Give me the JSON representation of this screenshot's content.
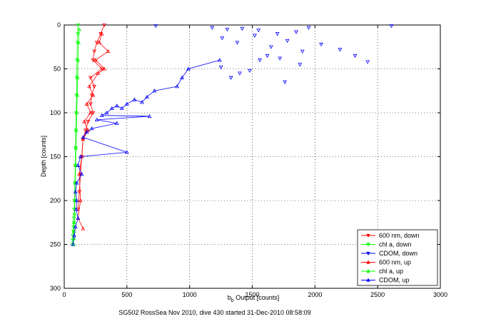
{
  "chart_data": {
    "type": "scatter",
    "xlabel_main": "b",
    "xlabel_sub": "b",
    "xlabel_rest": " Output [counts]",
    "ylabel": "Depth [counts]",
    "xlim": [
      0,
      3000
    ],
    "ylim": [
      0,
      300
    ],
    "y_reversed": true,
    "grid": true,
    "x_ticks": [
      0,
      500,
      1000,
      1500,
      2000,
      2500,
      3000
    ],
    "y_ticks": [
      0,
      50,
      100,
      150,
      200,
      250,
      300
    ],
    "legend_position": "bottom-right",
    "footer": "SG502 RossSea Nov 2010, dive 430 started 31-Dec-2010 08:58:09",
    "colors": {
      "red": "#ff0000",
      "green": "#00ff00",
      "blue": "#0000ff"
    },
    "series": [
      {
        "name": "600 nm, down",
        "color": "#ff0000",
        "marker": "triangle-down",
        "line": true,
        "x": [
          320,
          290,
          260,
          240,
          230,
          300,
          210,
          240,
          220,
          210,
          230,
          190,
          170,
          150,
          140,
          130,
          120,
          110
        ],
        "y": [
          0,
          10,
          20,
          30,
          40,
          50,
          60,
          70,
          80,
          90,
          100,
          110,
          120,
          130,
          150,
          170,
          190,
          210
        ]
      },
      {
        "name": "chl a, down",
        "color": "#00ff00",
        "marker": "triangle-down",
        "line": true,
        "x": [
          110,
          108,
          105,
          102,
          100,
          98,
          95,
          92,
          90,
          88,
          85,
          82,
          80,
          78,
          76,
          74,
          72,
          70,
          68,
          66
        ],
        "y": [
          0,
          10,
          20,
          40,
          60,
          80,
          100,
          120,
          140,
          160,
          180,
          200,
          210,
          220,
          225,
          230,
          235,
          240,
          245,
          250
        ]
      },
      {
        "name": "CDOM, down",
        "color": "#0000ff",
        "marker": "triangle-down",
        "line": false,
        "x": [
          730,
          2610,
          1180,
          1300,
          1420,
          1550,
          1700,
          1850,
          1950,
          1260,
          1380,
          1520,
          1650,
          1780,
          1900,
          2050,
          2200,
          2320,
          2420,
          1250,
          1400,
          1560,
          1720,
          1880,
          1330,
          1480,
          1620,
          1760
        ],
        "y": [
          1,
          1,
          3,
          5,
          4,
          6,
          10,
          8,
          3,
          15,
          20,
          12,
          25,
          18,
          30,
          22,
          28,
          35,
          42,
          48,
          55,
          40,
          38,
          45,
          60,
          52,
          35,
          65
        ]
      },
      {
        "name": "600 nm, up",
        "color": "#ff0000",
        "marker": "triangle-up",
        "line": true,
        "x": [
          300,
          280,
          350,
          250,
          320,
          270,
          200,
          230,
          180,
          210,
          160,
          190,
          150,
          140,
          120,
          130,
          110,
          150
        ],
        "y": [
          10,
          20,
          30,
          40,
          50,
          55,
          70,
          80,
          90,
          100,
          110,
          120,
          130,
          150,
          170,
          200,
          220,
          232
        ]
      },
      {
        "name": "chl a, up",
        "color": "#00ff00",
        "marker": "triangle-up",
        "line": true,
        "x": [
          120,
          115,
          110,
          107,
          104,
          100,
          97,
          94,
          91,
          88,
          85,
          82,
          80,
          78,
          76,
          74
        ],
        "y": [
          5,
          20,
          40,
          60,
          80,
          100,
          120,
          140,
          160,
          180,
          200,
          215,
          225,
          235,
          243,
          250
        ]
      },
      {
        "name": "CDOM, up",
        "color": "#0000ff",
        "marker": "triangle-up",
        "line": true,
        "x": [
          1240,
          990,
          940,
          900,
          720,
          660,
          620,
          560,
          500,
          460,
          420,
          380,
          340,
          300,
          680,
          260,
          420,
          220,
          180,
          150,
          500,
          130,
          110,
          140,
          100,
          90,
          100,
          95,
          110,
          90,
          80,
          70
        ],
        "y": [
          40,
          50,
          60,
          70,
          75,
          82,
          88,
          85,
          90,
          95,
          92,
          95,
          100,
          103,
          104,
          108,
          112,
          118,
          122,
          128,
          145,
          150,
          160,
          170,
          180,
          190,
          200,
          210,
          220,
          230,
          240,
          250
        ]
      }
    ],
    "legend": [
      "600 nm, down",
      "chl a, down",
      "CDOM, down",
      "600 nm, up",
      "chl a, up",
      "CDOM, up"
    ]
  }
}
